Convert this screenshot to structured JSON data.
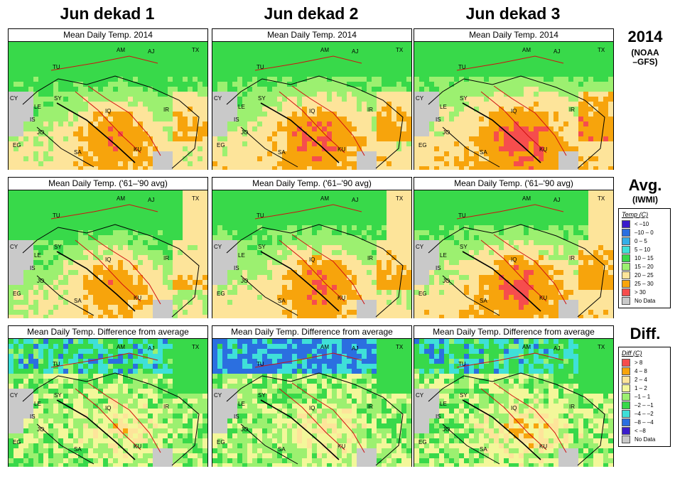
{
  "columns": [
    {
      "title": "Jun dekad 1"
    },
    {
      "title": "Jun dekad 2"
    },
    {
      "title": "Jun dekad 3"
    }
  ],
  "rows": [
    {
      "key": "y2014",
      "label": "2014",
      "sublabel1": "(NOAA",
      "sublabel2": "–GFS)",
      "panel_title": "Mean Daily Temp. 2014"
    },
    {
      "key": "avg",
      "label": "Avg.",
      "sublabel1": "(IWMI)",
      "sublabel2": "",
      "panel_title": "Mean Daily Temp. ('61–'90 avg)"
    },
    {
      "key": "diff",
      "label": "Diff.",
      "sublabel1": "",
      "sublabel2": "",
      "panel_title": "Mean Daily Temp. Difference from average"
    }
  ],
  "map_labels": [
    "AM",
    "AJ",
    "TX",
    "TU",
    "SY",
    "CY",
    "LE",
    "IS",
    "JO",
    "EG",
    "SA",
    "IQ",
    "IR",
    "KU"
  ],
  "temp_legend": {
    "title": "Temp (C)",
    "items": [
      {
        "label": "< –10",
        "color": "#3a1ccc"
      },
      {
        "label": "–10 – 0",
        "color": "#2b6fe0"
      },
      {
        "label": "0 – 5",
        "color": "#35aee8"
      },
      {
        "label": "5 – 10",
        "color": "#3fe0d8"
      },
      {
        "label": "10 – 15",
        "color": "#38d94a"
      },
      {
        "label": "15 – 20",
        "color": "#9cf070"
      },
      {
        "label": "20 – 25",
        "color": "#fde49a"
      },
      {
        "label": "25 – 30",
        "color": "#f7a40c"
      },
      {
        "label": "> 30",
        "color": "#f64d4d"
      },
      {
        "label": "No Data",
        "color": "#c9c9c9"
      }
    ]
  },
  "diff_legend": {
    "title": "Diff (C)",
    "items": [
      {
        "label": "> 8",
        "color": "#f64d4d"
      },
      {
        "label": "4 – 8",
        "color": "#f7a40c"
      },
      {
        "label": "2 – 4",
        "color": "#fde49a"
      },
      {
        "label": "1 – 2",
        "color": "#f3f79a"
      },
      {
        "label": "–1 – 1",
        "color": "#9cf070"
      },
      {
        "label": "–2 – –1",
        "color": "#38d94a"
      },
      {
        "label": "–4 – –2",
        "color": "#3fe0d8"
      },
      {
        "label": "–8 – –4",
        "color": "#2b6fe0"
      },
      {
        "label": "< –8",
        "color": "#3a1ccc"
      },
      {
        "label": "No Data",
        "color": "#c9c9c9"
      }
    ]
  },
  "colors": {
    "sea": "#c9c9c9",
    "border": "#000000",
    "river": "#d01010"
  }
}
